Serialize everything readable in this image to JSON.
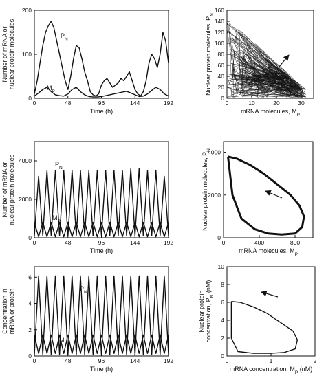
{
  "chart_data": [
    {
      "type": "line",
      "xlabel": "Time (h)",
      "ylabel_lines": [
        "Number of mRNA or",
        "nuclear protein molecules"
      ],
      "xlim": [
        0,
        192
      ],
      "ylim": [
        0,
        200
      ],
      "xticks": [
        0,
        48,
        96,
        144,
        192
      ],
      "yticks": [
        0,
        100,
        200
      ],
      "annotations": [
        {
          "text": "P",
          "sub": "N"
        },
        {
          "text": "M",
          "sub": "P"
        }
      ],
      "series": [
        {
          "x": [
            0,
            4,
            8,
            12,
            16,
            20,
            24,
            28,
            32,
            36,
            40,
            44,
            48,
            52,
            56,
            60,
            64,
            68,
            72,
            76,
            80,
            84,
            88,
            92,
            96,
            100,
            104,
            108,
            112,
            116,
            120,
            124,
            128,
            132,
            136,
            140,
            144,
            148,
            152,
            156,
            160,
            164,
            168,
            172,
            176,
            180,
            184,
            188,
            192
          ],
          "y": [
            10,
            40,
            80,
            120,
            150,
            165,
            175,
            160,
            130,
            100,
            70,
            40,
            20,
            50,
            90,
            120,
            115,
            90,
            60,
            40,
            15,
            8,
            5,
            10,
            30,
            40,
            45,
            35,
            25,
            30,
            35,
            45,
            40,
            50,
            60,
            40,
            20,
            10,
            5,
            15,
            40,
            80,
            100,
            90,
            70,
            100,
            150,
            130,
            80
          ]
        },
        {
          "x": [
            0,
            6,
            12,
            18,
            24,
            30,
            36,
            42,
            48,
            54,
            60,
            66,
            72,
            78,
            84,
            90,
            96,
            102,
            108,
            114,
            120,
            126,
            132,
            138,
            144,
            150,
            156,
            162,
            168,
            174,
            180,
            186,
            192
          ],
          "y": [
            5,
            12,
            20,
            25,
            15,
            8,
            6,
            5,
            10,
            20,
            25,
            15,
            8,
            4,
            3,
            3,
            4,
            6,
            8,
            10,
            12,
            14,
            16,
            12,
            8,
            4,
            5,
            10,
            18,
            25,
            20,
            10,
            5
          ]
        }
      ]
    },
    {
      "type": "scatter",
      "xlabel": "mRNA molecules, M",
      "xlabel_sub": "P",
      "ylabel": "Nuclear protein molecules, P",
      "ylabel_sub": "N",
      "xlim": [
        0,
        35
      ],
      "ylim": [
        0,
        160
      ],
      "xticks": [
        0,
        10,
        20,
        30
      ],
      "yticks": [
        0,
        20,
        40,
        60,
        80,
        100,
        120,
        140,
        160
      ],
      "arrow_direction": "up-right"
    },
    {
      "type": "line",
      "xlabel": "Time (h)",
      "ylabel_lines": [
        "Number of mRNA or",
        "nuclear protein molecules"
      ],
      "xlim": [
        0,
        192
      ],
      "ylim": [
        0,
        5000
      ],
      "xticks": [
        0,
        48,
        96,
        144,
        192
      ],
      "yticks": [
        0,
        2000,
        4000
      ],
      "annotations": [
        {
          "text": "P",
          "sub": "N"
        },
        {
          "text": "M",
          "sub": "P"
        }
      ],
      "period_h": 24,
      "series": [
        {
          "x": [
            0,
            6,
            12,
            18,
            24,
            30,
            36,
            42,
            48,
            54,
            60,
            66,
            72,
            78,
            84,
            90,
            96,
            102,
            108,
            114,
            120,
            126,
            132,
            138,
            144,
            150,
            156,
            162,
            168,
            174,
            180,
            186,
            192
          ],
          "y": [
            100,
            3200,
            100,
            3500,
            100,
            3500,
            100,
            3500,
            100,
            3500,
            100,
            3500,
            100,
            3500,
            100,
            3500,
            100,
            3500,
            100,
            3500,
            100,
            3500,
            100,
            3600,
            100,
            3600,
            100,
            3500,
            100,
            3500,
            100,
            3200,
            100
          ]
        },
        {
          "x": [
            0,
            6,
            12,
            18,
            24,
            30,
            36,
            42,
            48,
            54,
            60,
            66,
            72,
            78,
            84,
            90,
            96,
            102,
            108,
            114,
            120,
            126,
            132,
            138,
            144,
            150,
            156,
            162,
            168,
            174,
            180,
            186,
            192
          ],
          "y": [
            800,
            50,
            800,
            50,
            800,
            50,
            800,
            50,
            800,
            50,
            800,
            50,
            800,
            50,
            800,
            50,
            800,
            50,
            800,
            50,
            800,
            50,
            800,
            50,
            800,
            50,
            800,
            50,
            800,
            50,
            800,
            50,
            800
          ]
        }
      ]
    },
    {
      "type": "line",
      "xlabel": "mRNA molecules, M",
      "xlabel_sub": "P",
      "ylabel": "Nuclear protein molecules, P",
      "ylabel_sub": "N",
      "xlim": [
        0,
        1000
      ],
      "ylim": [
        0,
        4500
      ],
      "xticks": [
        0,
        400,
        800
      ],
      "yticks": [
        0,
        2000,
        4000
      ],
      "arrow_direction": "up-left",
      "series": [
        {
          "x": [
            50,
            150,
            300,
            450,
            600,
            750,
            850,
            900,
            880,
            800,
            650,
            500,
            350,
            200,
            100,
            50
          ],
          "y": [
            3800,
            3700,
            3400,
            3000,
            2500,
            2000,
            1500,
            1000,
            500,
            200,
            150,
            200,
            400,
            900,
            2000,
            3800
          ]
        }
      ]
    },
    {
      "type": "line",
      "xlabel": "Time (h)",
      "ylabel_lines": [
        "Concentration in",
        "mRNA or protein"
      ],
      "xlim": [
        0,
        192
      ],
      "ylim": [
        0,
        6.8
      ],
      "xticks": [
        0,
        48,
        96,
        144,
        192
      ],
      "yticks": [
        0,
        2,
        4,
        6
      ],
      "annotations": [
        {
          "text": "P",
          "sub": "N"
        },
        {
          "text": "M",
          "sub": "P"
        }
      ],
      "period_h": 24,
      "series": [
        {
          "x": [
            0,
            6,
            12,
            18,
            24,
            30,
            36,
            42,
            48,
            54,
            60,
            66,
            72,
            78,
            84,
            90,
            96,
            102,
            108,
            114,
            120,
            126,
            132,
            138,
            144,
            150,
            156,
            162,
            168,
            174,
            180,
            186,
            192
          ],
          "y": [
            0.1,
            6.1,
            0.1,
            6.1,
            0.1,
            6.1,
            0.1,
            6.1,
            0.1,
            6.1,
            0.1,
            6.1,
            0.1,
            6.1,
            0.1,
            6.1,
            0.1,
            6.1,
            0.1,
            6.1,
            0.1,
            6.1,
            0.1,
            6.1,
            0.1,
            6.1,
            0.1,
            6.1,
            0.1,
            6.1,
            0.1,
            6.1,
            0.1
          ]
        },
        {
          "x": [
            0,
            6,
            12,
            18,
            24,
            30,
            36,
            42,
            48,
            54,
            60,
            66,
            72,
            78,
            84,
            90,
            96,
            102,
            108,
            114,
            120,
            126,
            132,
            138,
            144,
            150,
            156,
            162,
            168,
            174,
            180,
            186,
            192
          ],
          "y": [
            1.6,
            0.2,
            1.6,
            0.2,
            1.6,
            0.2,
            1.6,
            0.2,
            1.6,
            0.2,
            1.6,
            0.2,
            1.6,
            0.2,
            1.6,
            0.2,
            1.6,
            0.2,
            1.6,
            0.2,
            1.6,
            0.2,
            1.6,
            0.2,
            1.6,
            0.2,
            1.6,
            0.2,
            1.6,
            0.2,
            1.6,
            0.2,
            1.6
          ]
        }
      ]
    },
    {
      "type": "line",
      "xlabel": "mRNA concentration, M",
      "xlabel_sub": "P",
      "xlabel_tail": " (nM)",
      "ylabel_lines": [
        "Nuclear protein",
        "concentration, P"
      ],
      "ylabel_sub": "N",
      "ylabel_tail": " (nM)",
      "xlim": [
        0,
        2
      ],
      "ylim": [
        0,
        10
      ],
      "xticks": [
        0,
        1,
        2
      ],
      "yticks": [
        0,
        2,
        4,
        6,
        8,
        10
      ],
      "arrow_direction": "up-left",
      "series": [
        {
          "x": [
            0.1,
            0.3,
            0.6,
            0.9,
            1.2,
            1.5,
            1.6,
            1.55,
            1.3,
            1.0,
            0.6,
            0.25,
            0.1,
            0.1
          ],
          "y": [
            6.1,
            6.0,
            5.5,
            4.8,
            3.8,
            2.8,
            1.8,
            0.8,
            0.4,
            0.3,
            0.3,
            0.5,
            2.0,
            6.1
          ]
        }
      ]
    }
  ]
}
